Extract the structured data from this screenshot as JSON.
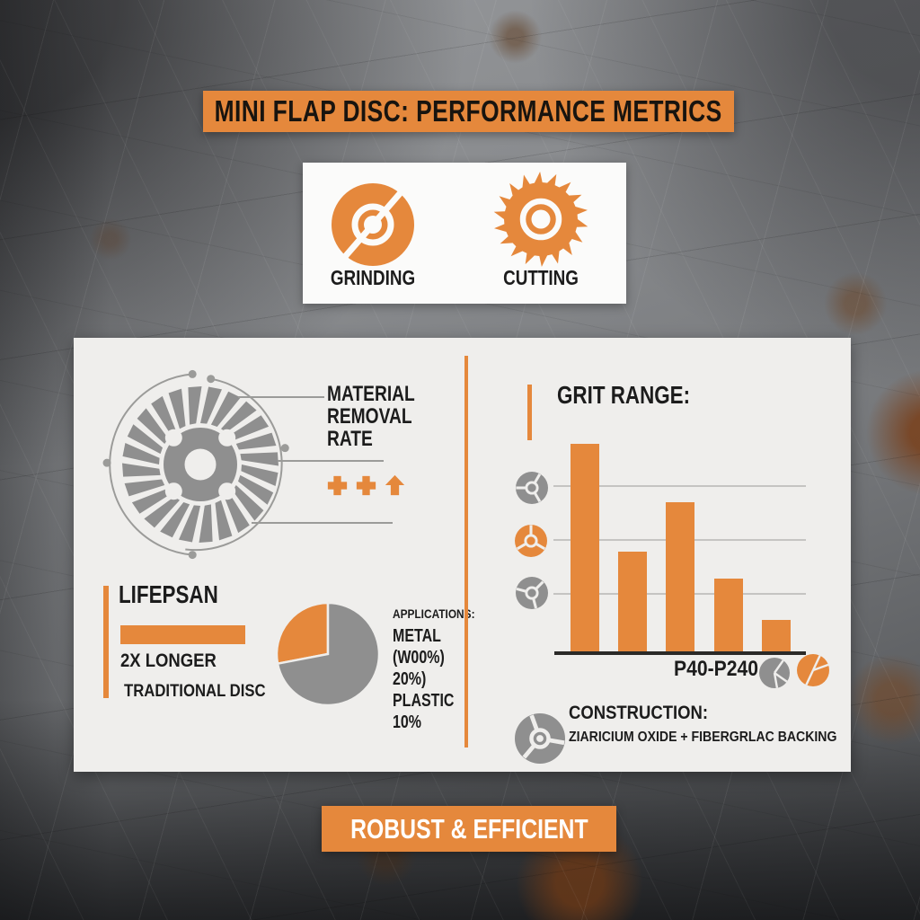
{
  "colors": {
    "accent": "#e5883c",
    "panel_bg": "#efeeec",
    "card_bg": "#fbfbfa",
    "disc_gray": "#8f8f8f",
    "text_dark": "#1c1c1c",
    "banner_text_white": "#ffffff",
    "gridline_gray": "#c5c4c2",
    "callout_gray": "#9b9b99"
  },
  "title_banner": {
    "text": "MINI FLAP DISC: PERFORMANCE METRICS"
  },
  "icon_card": {
    "items": [
      {
        "icon": "grinding-disc-icon",
        "label": "GRINDING"
      },
      {
        "icon": "cutting-blade-icon",
        "label": "CUTTING"
      }
    ]
  },
  "left": {
    "material_removal": {
      "lines": [
        "MATERIAL",
        "REMOVAL",
        "RATE"
      ],
      "rating_icons": [
        "plus-icon",
        "plus-icon",
        "arrow-up-icon"
      ]
    },
    "lifespan": {
      "heading": "LIFEPSAN",
      "line1": "2X LONGER",
      "line2": "TRADITIONAL DISC"
    },
    "applications": {
      "heading": "APPLICATIONS:",
      "lines": [
        "METAL",
        "(W00%)",
        "20%)",
        "PLASTIC",
        "10%"
      ]
    }
  },
  "right": {
    "grit": {
      "heading": "GRIT RANGE:",
      "x_label": "P40-P240"
    },
    "construction": {
      "heading": "CONSTRUCTION:",
      "detail": "ZIARICIUM OXIDE + FIBERGRLAC BACKING"
    }
  },
  "bottom_banner": {
    "text": "ROBUST & EFFICIENT"
  },
  "chart_data": [
    {
      "type": "bar",
      "title": "GRIT RANGE:",
      "categories": [
        "",
        "",
        "",
        "",
        ""
      ],
      "values": [
        100,
        48,
        72,
        35,
        15
      ],
      "note": "relative bar heights, no numeric axis labels shown",
      "xlabel": "P40-P240",
      "ylabel": "",
      "ylim": [
        0,
        100
      ],
      "gridlines": 3,
      "grid": "on",
      "bar_color": "#e5883c",
      "axis_icon_colors": [
        "#8f8f8f",
        "#e5883c",
        "#8f8f8f"
      ]
    },
    {
      "type": "pie",
      "title": "APPLICATIONS:",
      "slices": [
        {
          "label": "orange slice",
          "value": 28,
          "color": "#e5883c"
        },
        {
          "label": "gray slice",
          "value": 72,
          "color": "#8f8f8f"
        }
      ],
      "legend_text": [
        "APPLICATIONS:",
        "METAL",
        "(W00%)",
        "20%)",
        "PLASTIC",
        "10%"
      ]
    }
  ]
}
